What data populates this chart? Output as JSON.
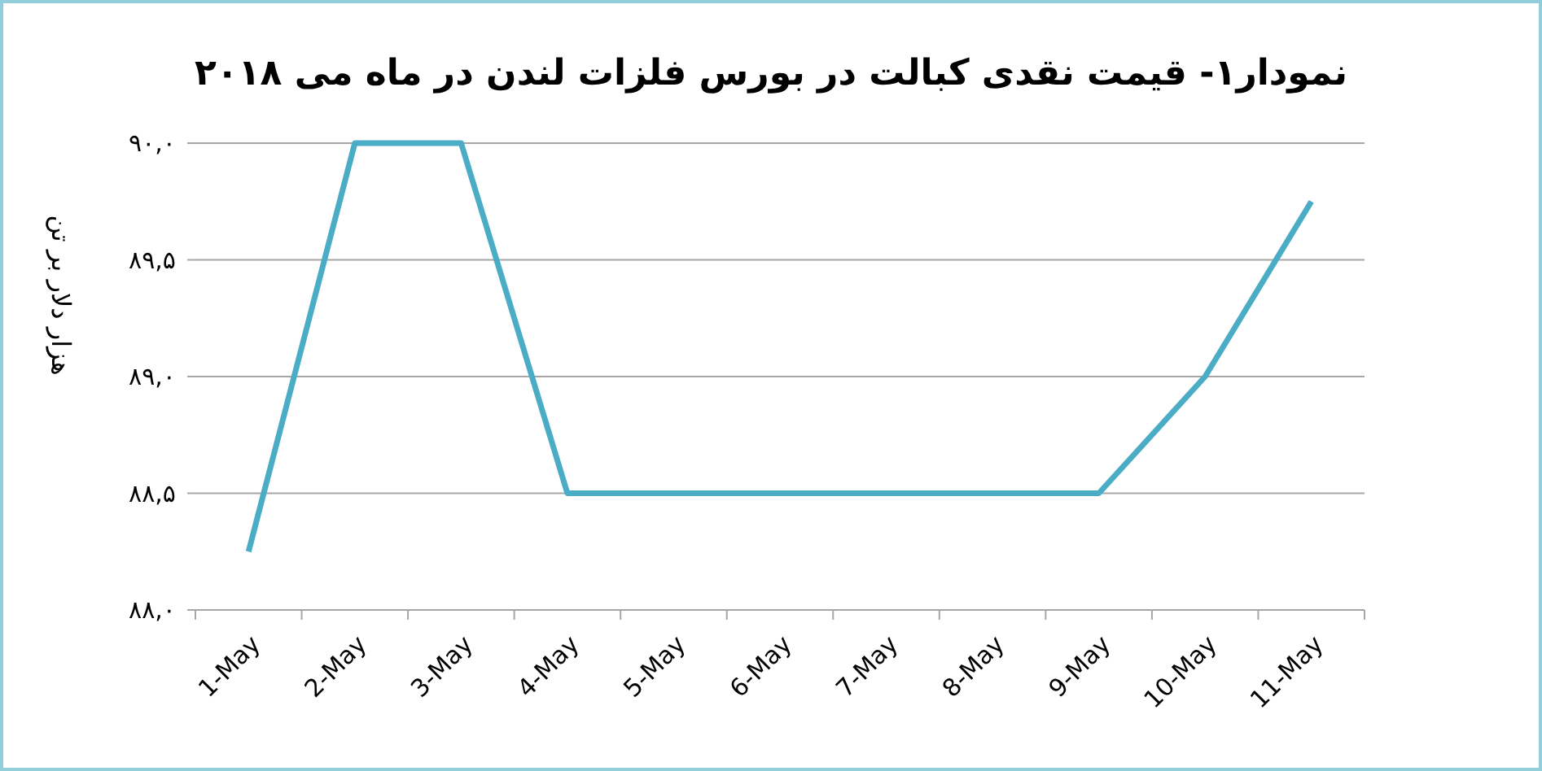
{
  "chart_data": {
    "type": "line",
    "title": "نمودار۱- قیمت نقدی کبالت در بورس فلزات لندن در ماه می ۲۰۱۸",
    "ylabel": "هزار دلار بر تن",
    "categories": [
      "1-May",
      "2-May",
      "3-May",
      "4-May",
      "5-May",
      "6-May",
      "7-May",
      "8-May",
      "9-May",
      "10-May",
      "11-May"
    ],
    "series": [
      {
        "color": "#4bacc6",
        "values": [
          88.25,
          90,
          90,
          88.5,
          88.5,
          88.5,
          88.5,
          88.5,
          88.5,
          89,
          89.75
        ]
      }
    ],
    "ylim": [
      88,
      90
    ],
    "yticks": [
      {
        "value": 88,
        "label": "۸۸,۰"
      },
      {
        "value": 88.5,
        "label": "۸۸,۵"
      },
      {
        "value": 89,
        "label": "۸۹,۰"
      },
      {
        "value": 89.5,
        "label": "۸۹,۵"
      },
      {
        "value": 90,
        "label": "۹۰,۰"
      }
    ],
    "grid": "y",
    "marker": "none",
    "line_style": "solid"
  }
}
